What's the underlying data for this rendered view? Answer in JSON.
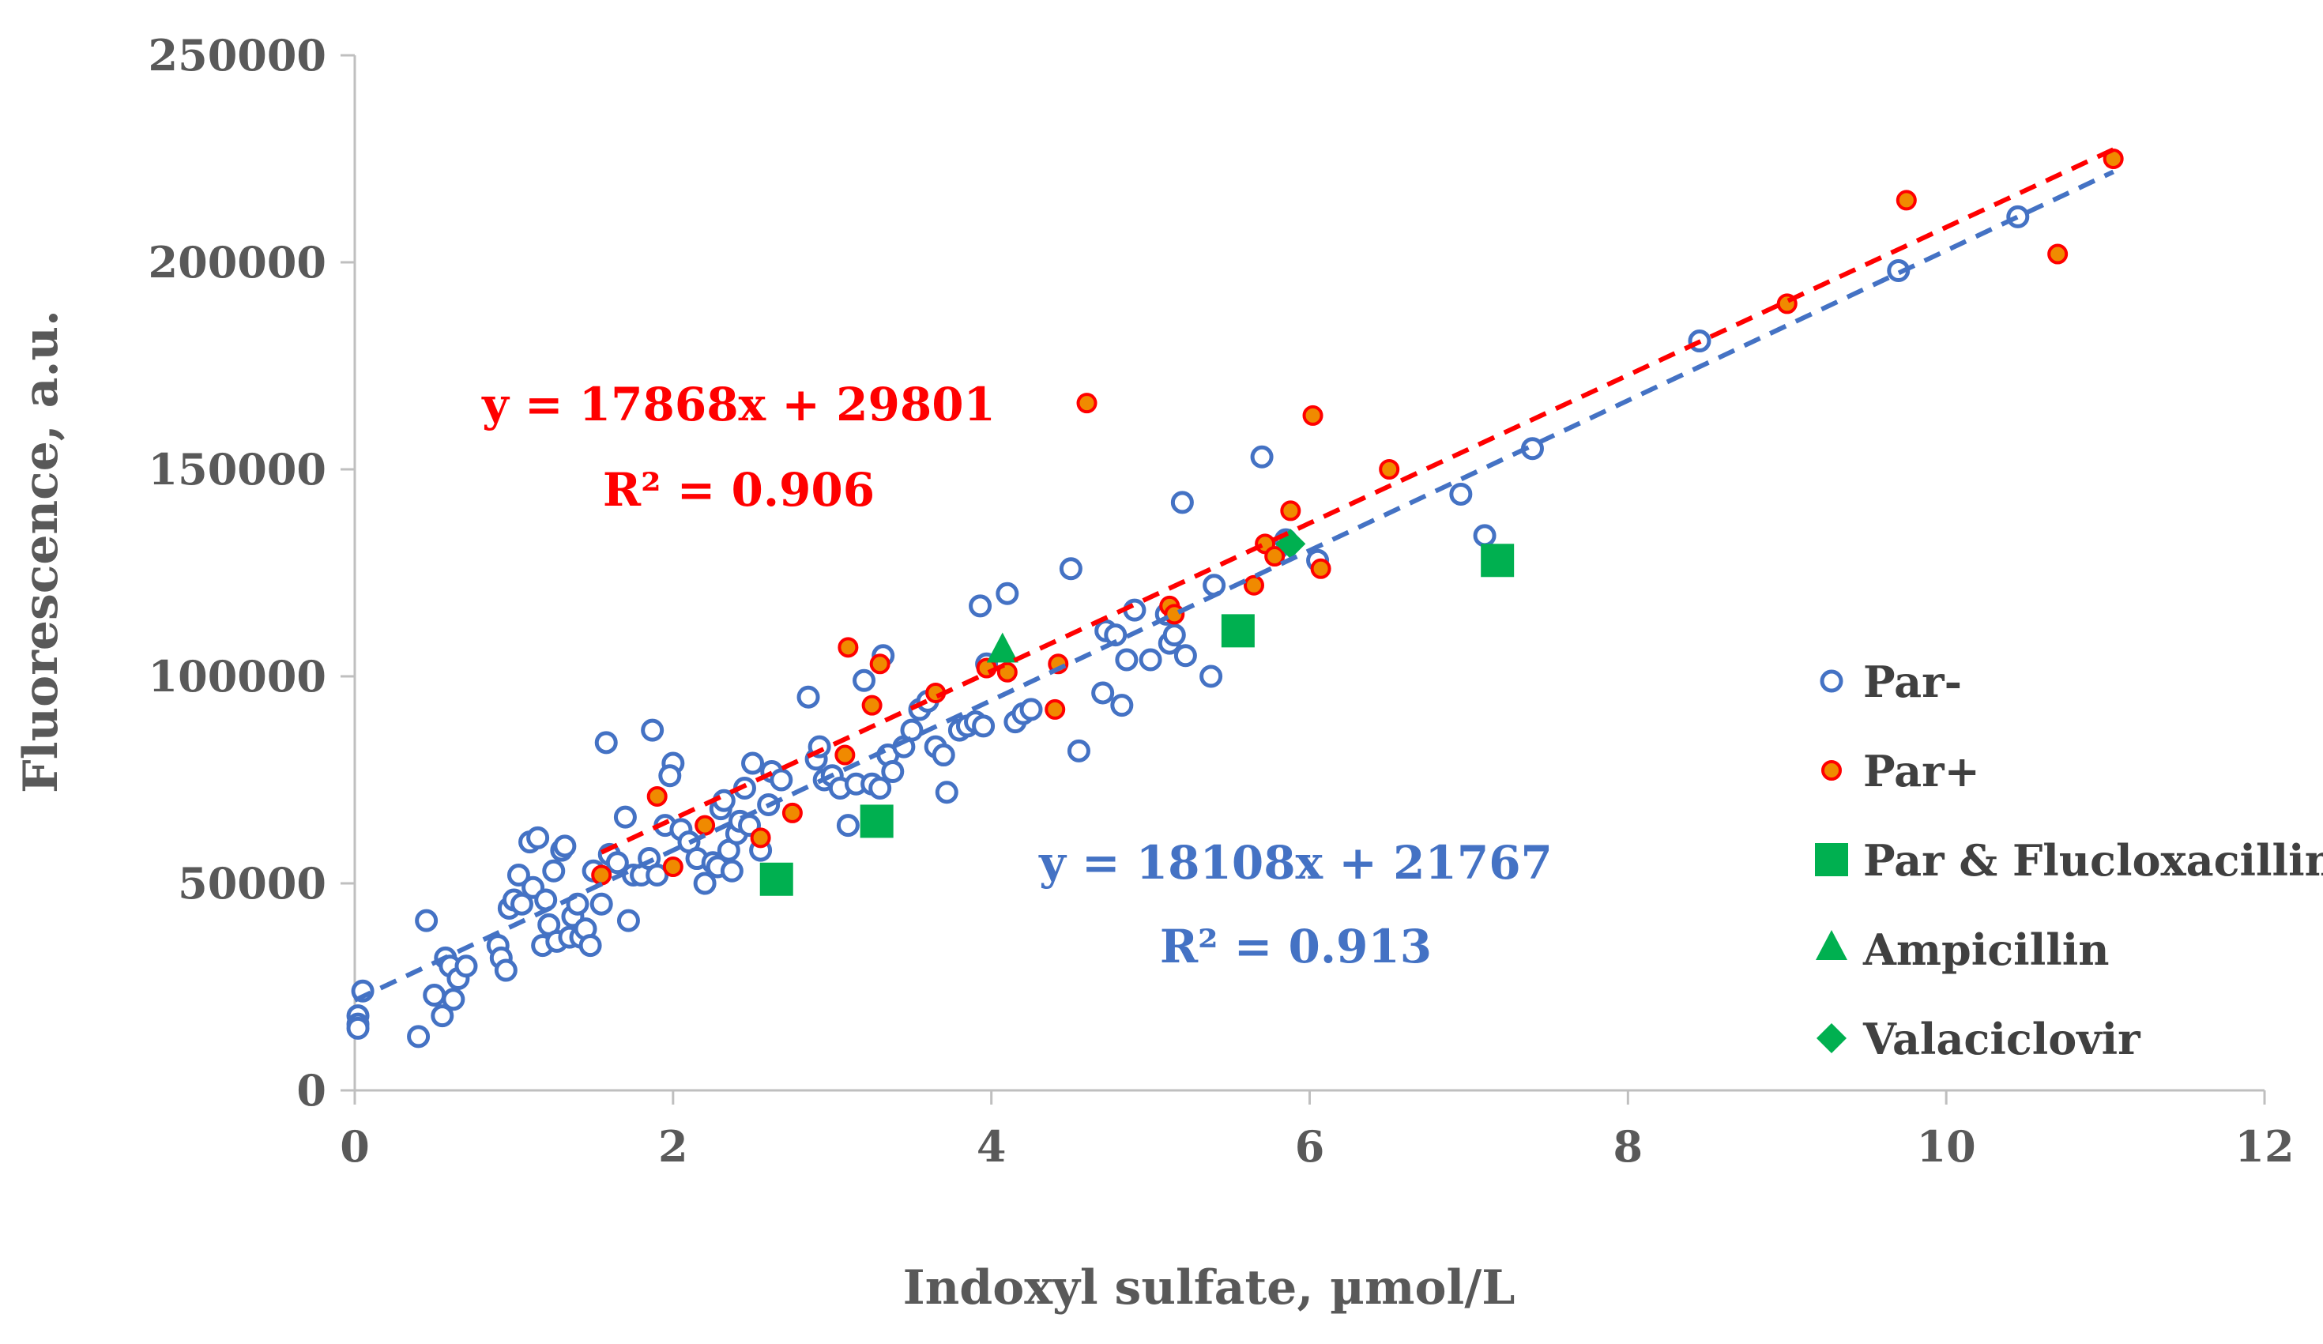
{
  "chart_data": {
    "type": "scatter",
    "xlabel": "Indoxyl sulfate, µmol/L",
    "ylabel": "Fluorescence, a.u.",
    "xlim": [
      0,
      12
    ],
    "ylim": [
      0,
      250000
    ],
    "x_ticks": [
      0,
      2,
      4,
      6,
      8,
      10,
      12
    ],
    "y_ticks": [
      0,
      50000,
      100000,
      150000,
      200000,
      250000
    ],
    "x_tick_labels": [
      "0",
      "2",
      "4",
      "6",
      "8",
      "10",
      "12"
    ],
    "y_tick_labels": [
      "0",
      "50000",
      "100000",
      "150000",
      "200000",
      "250000"
    ],
    "grid": false,
    "legend_position": "right",
    "colors": {
      "par_minus": "#4472C4",
      "par_plus": "#FF0000",
      "par_plus_fill": "#F08A00",
      "green": "#00B050",
      "axis": "#BFBFBF"
    },
    "series": [
      {
        "name": "Par-",
        "marker": "open-circle",
        "points": [
          [
            0.02,
            18000
          ],
          [
            0.02,
            16000
          ],
          [
            0.02,
            15000
          ],
          [
            0.05,
            24000
          ],
          [
            0.4,
            13000
          ],
          [
            0.45,
            41000
          ],
          [
            0.5,
            23000
          ],
          [
            0.55,
            18000
          ],
          [
            0.57,
            32000
          ],
          [
            0.6,
            30000
          ],
          [
            0.62,
            22000
          ],
          [
            0.65,
            27000
          ],
          [
            0.7,
            30000
          ],
          [
            0.9,
            35000
          ],
          [
            0.92,
            32000
          ],
          [
            0.95,
            29000
          ],
          [
            0.97,
            44000
          ],
          [
            1.0,
            46000
          ],
          [
            1.03,
            52000
          ],
          [
            1.05,
            45000
          ],
          [
            1.1,
            60000
          ],
          [
            1.12,
            49000
          ],
          [
            1.15,
            61000
          ],
          [
            1.18,
            35000
          ],
          [
            1.2,
            46000
          ],
          [
            1.22,
            40000
          ],
          [
            1.25,
            53000
          ],
          [
            1.27,
            36000
          ],
          [
            1.3,
            58000
          ],
          [
            1.32,
            59000
          ],
          [
            1.35,
            37000
          ],
          [
            1.37,
            42000
          ],
          [
            1.4,
            45000
          ],
          [
            1.42,
            37000
          ],
          [
            1.45,
            39000
          ],
          [
            1.48,
            35000
          ],
          [
            1.5,
            53000
          ],
          [
            1.55,
            45000
          ],
          [
            1.58,
            84000
          ],
          [
            1.6,
            57000
          ],
          [
            1.65,
            55000
          ],
          [
            1.7,
            66000
          ],
          [
            1.72,
            41000
          ],
          [
            1.75,
            52000
          ],
          [
            1.8,
            52000
          ],
          [
            1.85,
            56000
          ],
          [
            1.87,
            87000
          ],
          [
            1.9,
            52000
          ],
          [
            1.95,
            64000
          ],
          [
            2.0,
            79000
          ],
          [
            1.98,
            76000
          ],
          [
            2.05,
            63000
          ],
          [
            2.1,
            60000
          ],
          [
            2.15,
            56000
          ],
          [
            2.2,
            50000
          ],
          [
            2.25,
            55000
          ],
          [
            2.28,
            54000
          ],
          [
            2.3,
            68000
          ],
          [
            2.32,
            70000
          ],
          [
            2.35,
            58000
          ],
          [
            2.37,
            53000
          ],
          [
            2.4,
            62000
          ],
          [
            2.42,
            65000
          ],
          [
            2.45,
            73000
          ],
          [
            2.48,
            64000
          ],
          [
            2.5,
            79000
          ],
          [
            2.55,
            58000
          ],
          [
            2.6,
            69000
          ],
          [
            2.62,
            77000
          ],
          [
            2.68,
            75000
          ],
          [
            2.85,
            95000
          ],
          [
            2.9,
            80000
          ],
          [
            2.92,
            83000
          ],
          [
            2.95,
            75000
          ],
          [
            3.0,
            76000
          ],
          [
            3.05,
            73000
          ],
          [
            3.1,
            64000
          ],
          [
            3.15,
            74000
          ],
          [
            3.2,
            99000
          ],
          [
            3.25,
            74000
          ],
          [
            3.3,
            73000
          ],
          [
            3.32,
            105000
          ],
          [
            3.35,
            81000
          ],
          [
            3.38,
            77000
          ],
          [
            3.45,
            83000
          ],
          [
            3.5,
            87000
          ],
          [
            3.55,
            92000
          ],
          [
            3.6,
            94000
          ],
          [
            3.65,
            83000
          ],
          [
            3.7,
            81000
          ],
          [
            3.72,
            72000
          ],
          [
            3.8,
            87000
          ],
          [
            3.85,
            88000
          ],
          [
            3.9,
            89000
          ],
          [
            3.93,
            117000
          ],
          [
            3.95,
            88000
          ],
          [
            3.97,
            103000
          ],
          [
            4.1,
            120000
          ],
          [
            4.15,
            89000
          ],
          [
            4.2,
            91000
          ],
          [
            4.25,
            92000
          ],
          [
            4.5,
            126000
          ],
          [
            4.55,
            82000
          ],
          [
            4.7,
            96000
          ],
          [
            4.72,
            111000
          ],
          [
            4.78,
            110000
          ],
          [
            4.82,
            93000
          ],
          [
            4.85,
            104000
          ],
          [
            4.9,
            116000
          ],
          [
            5.0,
            104000
          ],
          [
            5.1,
            115000
          ],
          [
            5.12,
            108000
          ],
          [
            5.15,
            110000
          ],
          [
            5.2,
            142000
          ],
          [
            5.22,
            105000
          ],
          [
            5.38,
            100000
          ],
          [
            5.4,
            122000
          ],
          [
            5.7,
            153000
          ],
          [
            5.8,
            131000
          ],
          [
            5.85,
            133000
          ],
          [
            6.05,
            128000
          ],
          [
            6.95,
            144000
          ],
          [
            7.1,
            134000
          ],
          [
            7.4,
            155000
          ],
          [
            8.45,
            181000
          ],
          [
            9.7,
            198000
          ],
          [
            10.45,
            211000
          ]
        ]
      },
      {
        "name": "Par+",
        "marker": "filled-circle",
        "points": [
          [
            1.55,
            52000
          ],
          [
            1.9,
            71000
          ],
          [
            2.0,
            54000
          ],
          [
            2.2,
            64000
          ],
          [
            2.55,
            61000
          ],
          [
            2.75,
            67000
          ],
          [
            3.1,
            107000
          ],
          [
            3.08,
            81000
          ],
          [
            3.25,
            93000
          ],
          [
            3.3,
            103000
          ],
          [
            3.65,
            96000
          ],
          [
            3.97,
            102000
          ],
          [
            4.1,
            101000
          ],
          [
            4.4,
            92000
          ],
          [
            4.42,
            103000
          ],
          [
            4.6,
            166000
          ],
          [
            5.12,
            117000
          ],
          [
            5.15,
            115000
          ],
          [
            5.65,
            122000
          ],
          [
            5.72,
            132000
          ],
          [
            5.78,
            129000
          ],
          [
            5.88,
            140000
          ],
          [
            6.02,
            163000
          ],
          [
            6.07,
            126000
          ],
          [
            6.5,
            150000
          ],
          [
            9.0,
            190000
          ],
          [
            9.75,
            215000
          ],
          [
            10.7,
            202000
          ],
          [
            11.05,
            225000
          ]
        ]
      },
      {
        "name": "Par & Flucloxacillin",
        "marker": "square",
        "points": [
          [
            2.65,
            51000
          ],
          [
            3.28,
            65000
          ],
          [
            5.55,
            111000
          ],
          [
            7.18,
            128000
          ]
        ]
      },
      {
        "name": "Ampicillin",
        "marker": "triangle",
        "points": [
          [
            4.07,
            106000
          ]
        ]
      },
      {
        "name": "Valaciclovir",
        "marker": "diamond",
        "points": [
          [
            5.88,
            132000
          ]
        ]
      }
    ],
    "trendlines": [
      {
        "series": "Par+",
        "x_range": [
          1.55,
          11.05
        ],
        "slope": 17868,
        "intercept": 29801,
        "equation": "y = 17868x + 29801",
        "r2": "R² = 0.906"
      },
      {
        "series": "Par-",
        "x_range": [
          0,
          11.05
        ],
        "slope": 18108,
        "intercept": 21767,
        "equation": "y = 18108x + 21767",
        "r2": "R² = 0.913"
      }
    ]
  }
}
